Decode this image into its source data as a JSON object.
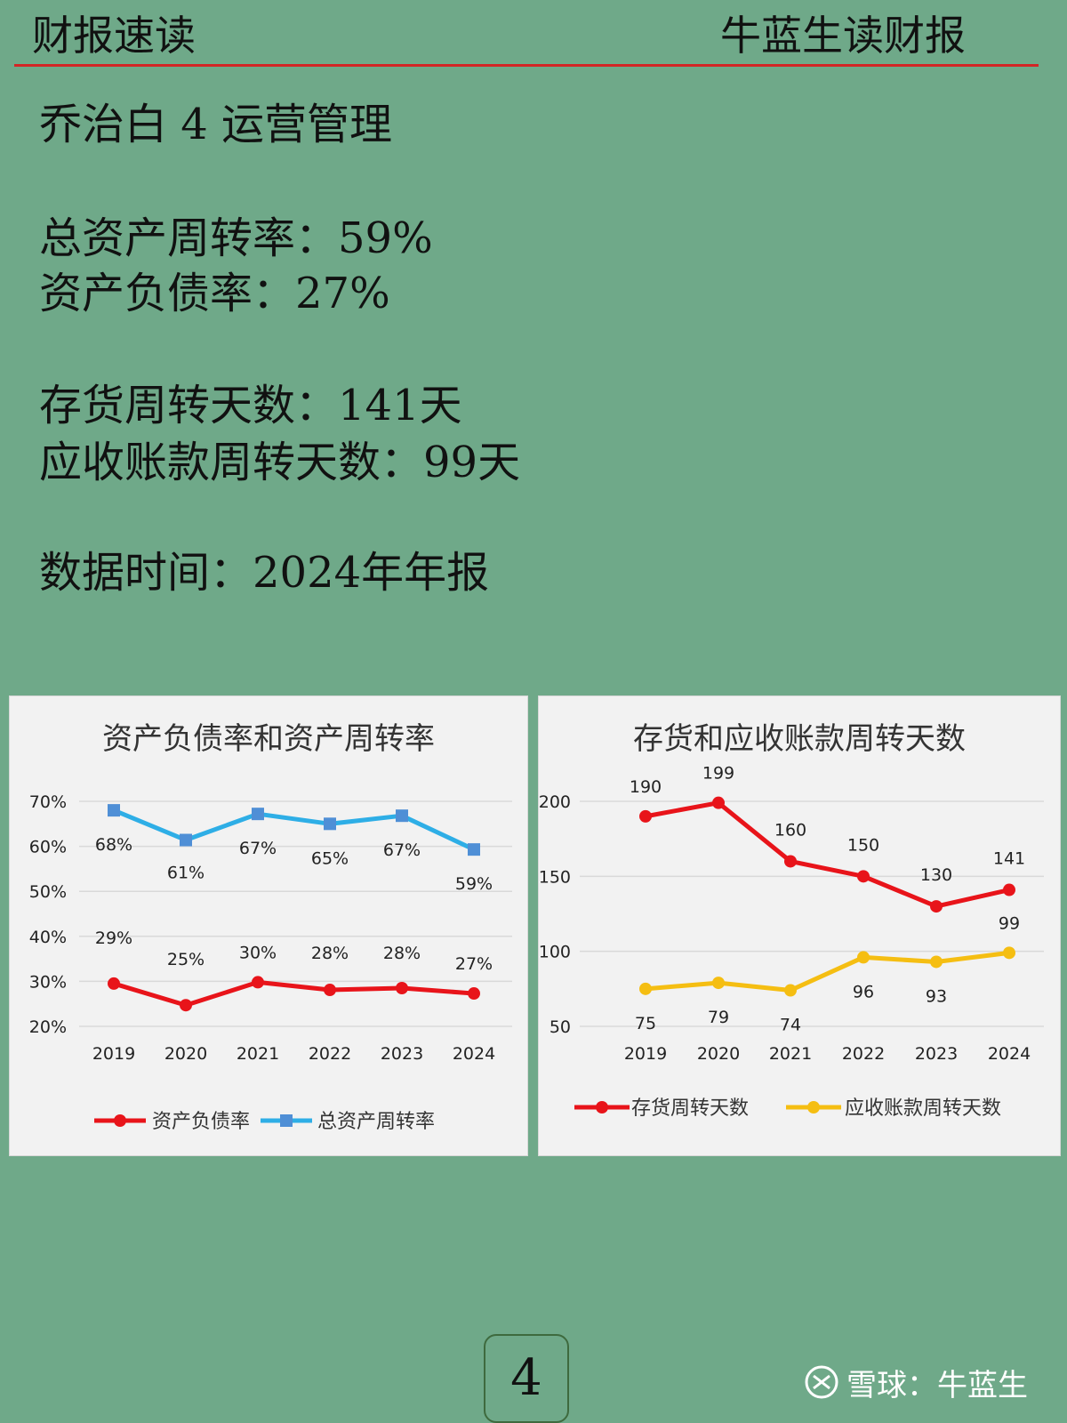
{
  "header": {
    "left": "财报速读",
    "right": "牛蓝生读财报"
  },
  "lines": {
    "title": "乔治白 4 运营管理",
    "asset_turnover": "总资产周转率：59%",
    "debt_ratio": "资产负债率：27%",
    "inventory_days": "存货周转天数：141天",
    "receivable_days": "应收账款周转天数：99天",
    "data_time": "数据时间：2024年年报"
  },
  "colors": {
    "background": "#6fa989",
    "rule": "#d32525",
    "red": "#e8141a",
    "blue": "#2eaee6",
    "yellow": "#f5be12"
  },
  "chart_data": [
    {
      "type": "line",
      "title": "资产负债率和资产周转率",
      "categories": [
        "2019",
        "2020",
        "2021",
        "2022",
        "2023",
        "2024"
      ],
      "ylim": [
        0.2,
        0.7
      ],
      "yticks": [
        "70%",
        "60%",
        "50%",
        "40%",
        "30%",
        "20%"
      ],
      "grid": true,
      "legend_placement": "bottom",
      "series": [
        {
          "name": "资产负债率",
          "color": "#e8141a",
          "marker": "circle",
          "values": [
            0.295,
            0.247,
            0.298,
            0.281,
            0.285,
            0.273
          ],
          "labels": [
            "29%",
            "25%",
            "30%",
            "28%",
            "28%",
            "27%"
          ]
        },
        {
          "name": "总资产周转率",
          "color": "#2eaee6",
          "marker": "square",
          "values": [
            0.68,
            0.614,
            0.672,
            0.65,
            0.668,
            0.593
          ],
          "labels": [
            "68%",
            "61%",
            "67%",
            "65%",
            "67%",
            "59%"
          ]
        }
      ]
    },
    {
      "type": "line",
      "title": "存货和应收账款周转天数",
      "categories": [
        "2019",
        "2020",
        "2021",
        "2022",
        "2023",
        "2024"
      ],
      "ylim": [
        50,
        200
      ],
      "yticks": [
        "200",
        "150",
        "100",
        "50"
      ],
      "grid": true,
      "legend_placement": "bottom",
      "series": [
        {
          "name": "存货周转天数",
          "color": "#e8141a",
          "marker": "circle",
          "values": [
            190,
            199,
            160,
            150,
            130,
            141
          ],
          "labels": [
            "190",
            "199",
            "160",
            "150",
            "130",
            "141"
          ]
        },
        {
          "name": "应收账款周转天数",
          "color": "#f5be12",
          "marker": "circle",
          "values": [
            75,
            79,
            74,
            96,
            93,
            99
          ],
          "labels": [
            "75",
            "79",
            "74",
            "96",
            "93",
            "99"
          ]
        }
      ]
    }
  ],
  "footer": {
    "page_number": "4",
    "watermark": "雪球：牛蓝生"
  }
}
